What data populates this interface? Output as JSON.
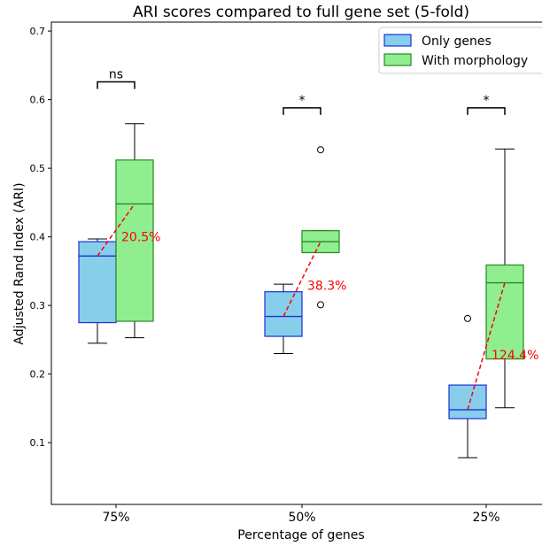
{
  "chart_data": {
    "type": "box",
    "title": "ARI scores compared to full gene set (5-fold)",
    "xlabel": "Percentage of genes",
    "ylabel": "Adjusted Rand Index (ARI)",
    "ylim": [
      0.01,
      0.713
    ],
    "yticks": [
      "0.1",
      "0.2",
      "0.3",
      "0.4",
      "0.5",
      "0.6",
      "0.7"
    ],
    "categories": [
      "75%",
      "50%",
      "25%"
    ],
    "legend_position": "top-right",
    "grid": false,
    "series": [
      {
        "name": "Only genes",
        "fill": "#87ceeb",
        "edge": "#1f2fd6",
        "boxes": [
          {
            "whislo": 0.245,
            "q1": 0.275,
            "med": 0.372,
            "q3": 0.393,
            "whishi": 0.397,
            "fliers": []
          },
          {
            "whislo": 0.23,
            "q1": 0.255,
            "med": 0.284,
            "q3": 0.32,
            "whishi": 0.331,
            "fliers": []
          },
          {
            "whislo": 0.078,
            "q1": 0.135,
            "med": 0.148,
            "q3": 0.184,
            "whishi": 0.184,
            "fliers": [
              0.281
            ]
          }
        ]
      },
      {
        "name": "With morphology",
        "fill": "#90ee90",
        "edge": "#228b22",
        "boxes": [
          {
            "whislo": 0.253,
            "q1": 0.277,
            "med": 0.448,
            "q3": 0.512,
            "whishi": 0.565,
            "fliers": []
          },
          {
            "whislo": 0.377,
            "q1": 0.377,
            "med": 0.393,
            "q3": 0.409,
            "whishi": 0.409,
            "fliers": [
              0.527,
              0.301
            ]
          },
          {
            "whislo": 0.151,
            "q1": 0.222,
            "med": 0.333,
            "q3": 0.359,
            "whishi": 0.528,
            "fliers": []
          }
        ]
      }
    ],
    "improvements": [
      {
        "label": "20.5%",
        "y": 0.4
      },
      {
        "label": "38.3%",
        "y": 0.329
      },
      {
        "label": "124.4%",
        "y": 0.228
      }
    ],
    "significance": [
      {
        "label": "ns",
        "y": 0.626
      },
      {
        "label": "*",
        "y": 0.588
      },
      {
        "label": "*",
        "y": 0.588
      }
    ],
    "colors": {
      "connector": "#ff0000",
      "axis": "#000000"
    }
  }
}
